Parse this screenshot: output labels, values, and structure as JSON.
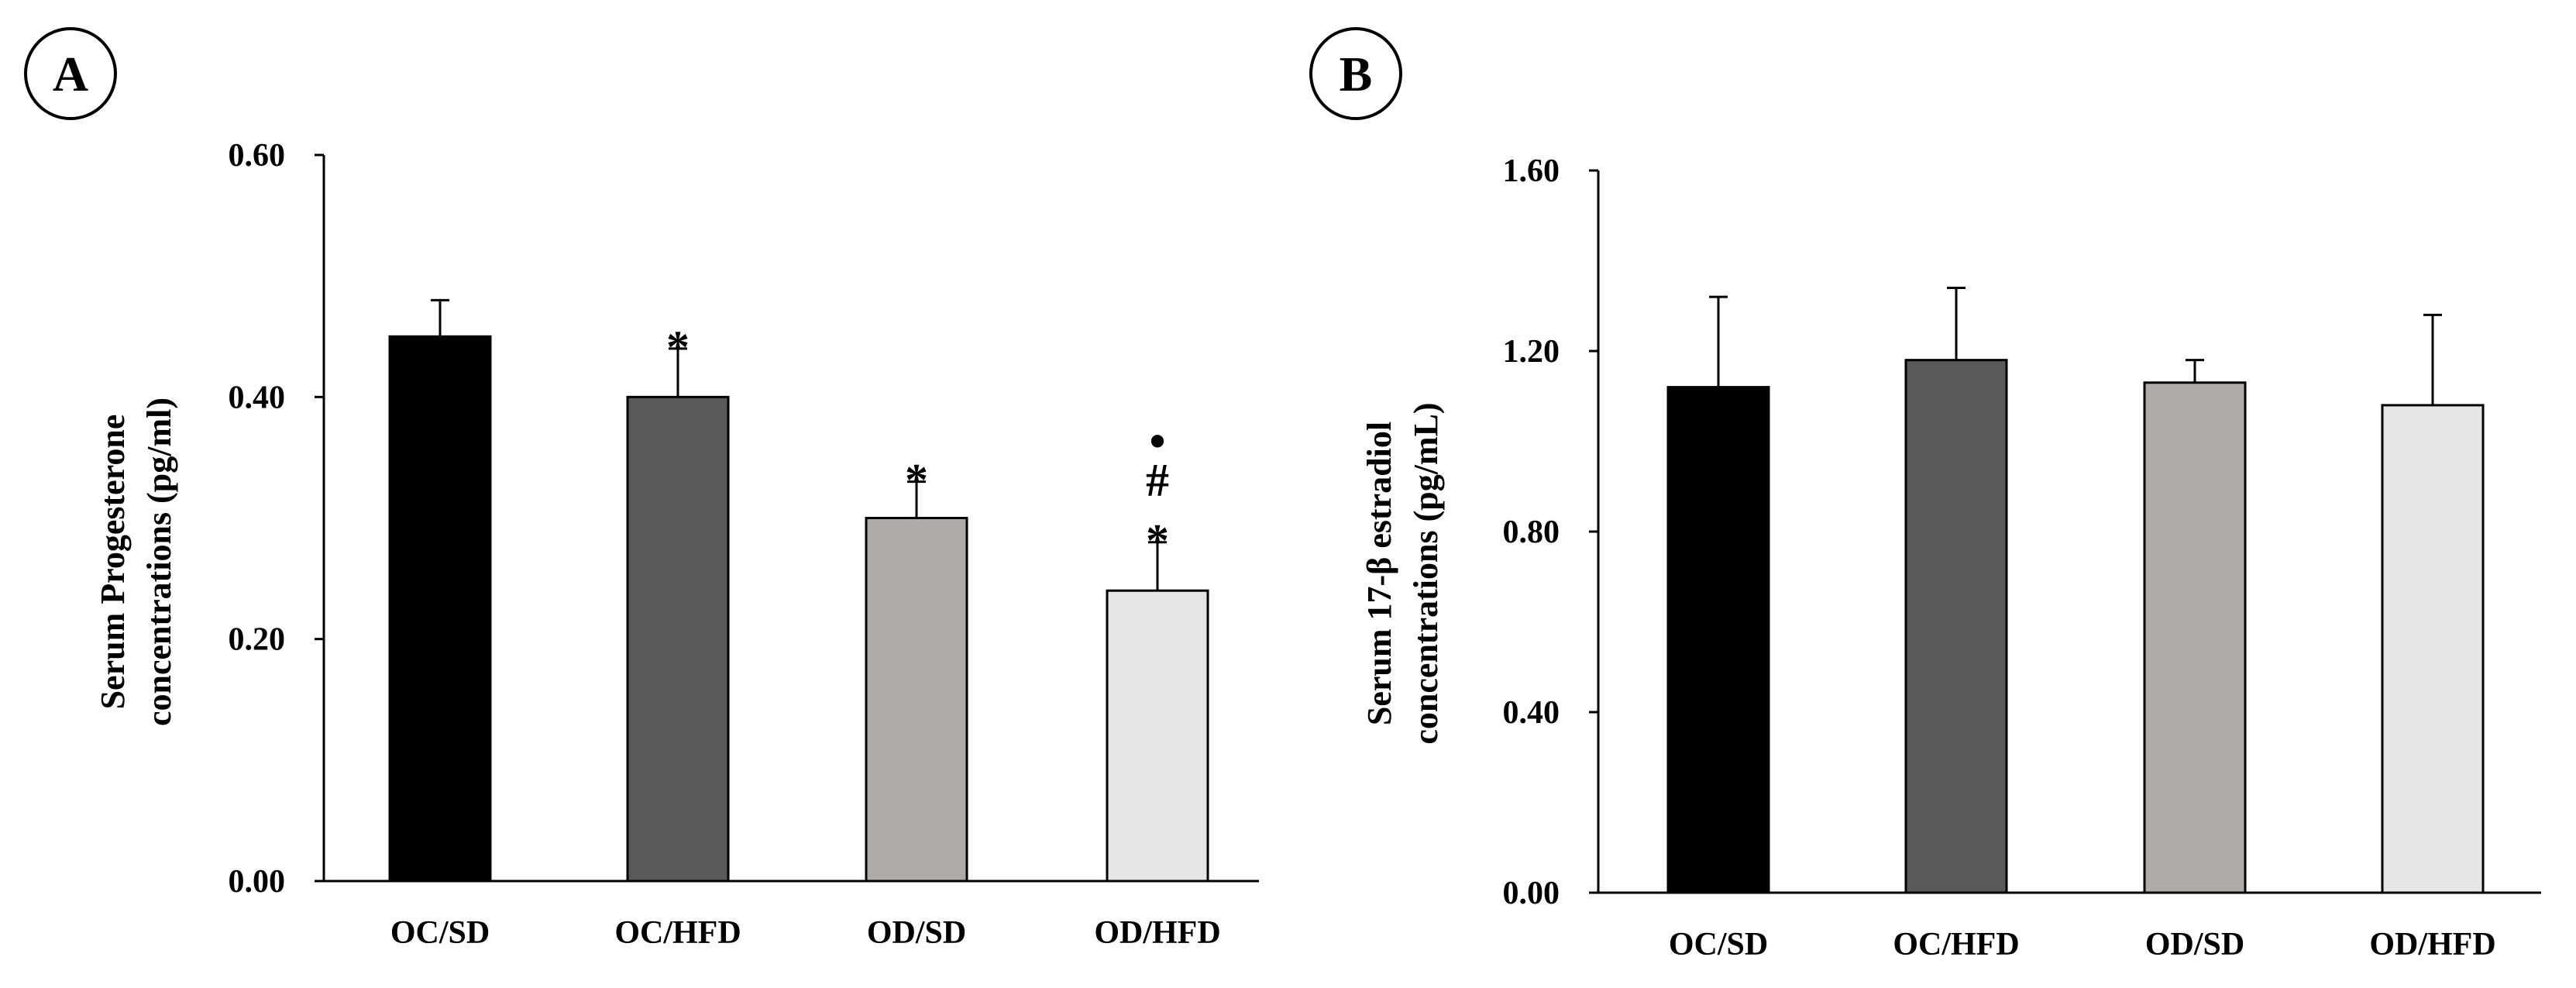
{
  "chart_data": [
    {
      "type": "bar",
      "panel": "A",
      "categories": [
        "OC/SD",
        "OC/HFD",
        "OD/SD",
        "OD/HFD"
      ],
      "values": [
        0.45,
        0.4,
        0.3,
        0.24
      ],
      "errors": [
        0.03,
        0.04,
        0.03,
        0.04
      ],
      "colors": [
        "#000000",
        "#595959",
        "#aeaaaa",
        "#e7e6e6"
      ],
      "annotations": [
        "",
        "*",
        "*",
        "*#•"
      ],
      "ylabel": [
        "Serum Progesterone",
        "concentrations  (pg/ml)"
      ],
      "yticks": [
        "0.00",
        "0.20",
        "0.40",
        "0.60"
      ],
      "ylim": [
        0,
        0.6
      ],
      "xlabel": "",
      "grid": false
    },
    {
      "type": "bar",
      "panel": "B",
      "categories": [
        "OC/SD",
        "OC/HFD",
        "OD/SD",
        "OD/HFD"
      ],
      "values": [
        1.12,
        1.18,
        1.13,
        1.08
      ],
      "errors": [
        0.2,
        0.16,
        0.05,
        0.2
      ],
      "colors": [
        "#000000",
        "#595959",
        "#aeaaaa",
        "#e7e6e6"
      ],
      "annotations": [
        "",
        "",
        "",
        ""
      ],
      "ylabel": [
        "Serum 17-β estradiol",
        "concentrations  (pg/mL)"
      ],
      "yticks": [
        "0.00",
        "0.40",
        "0.80",
        "1.20",
        "1.60"
      ],
      "ylim": [
        0,
        1.6
      ],
      "xlabel": "",
      "grid": false
    }
  ]
}
